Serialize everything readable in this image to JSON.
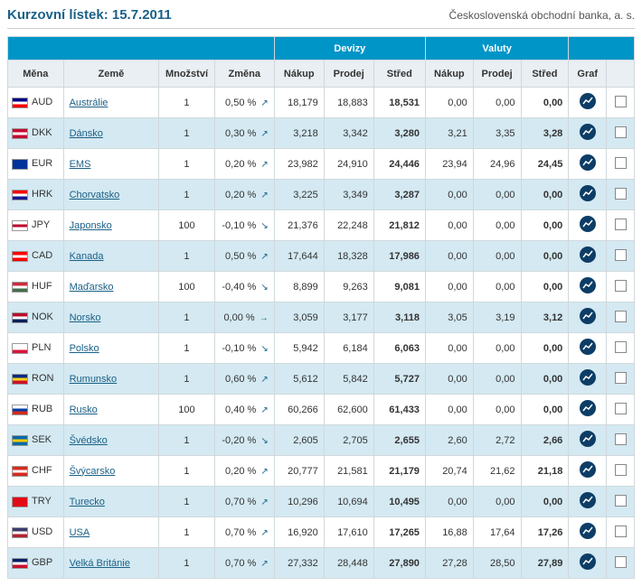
{
  "header": {
    "title": "Kurzovní lístek: 15.7.2011",
    "subtitle": "Československá obchodní banka, a. s."
  },
  "columns": {
    "mena": "Měna",
    "zeme": "Země",
    "mnozstvi": "Množství",
    "zmena": "Změna",
    "devizy": "Devizy",
    "valuty": "Valuty",
    "nakup": "Nákup",
    "prodej": "Prodej",
    "stred": "Střed",
    "graf": "Graf"
  },
  "rows": [
    {
      "code": "AUD",
      "country": "Austrálie",
      "flag": [
        "#00008b",
        "#ffffff",
        "#ff0000"
      ],
      "qty": "1",
      "change": "0,50 %",
      "dir": "up",
      "dn": "18,179",
      "dp": "18,883",
      "ds": "18,531",
      "vn": "0,00",
      "vp": "0,00",
      "vs": "0,00"
    },
    {
      "code": "DKK",
      "country": "Dánsko",
      "flag": [
        "#c60c30",
        "#ffffff",
        "#c60c30"
      ],
      "qty": "1",
      "change": "0,30 %",
      "dir": "up",
      "dn": "3,218",
      "dp": "3,342",
      "ds": "3,280",
      "vn": "3,21",
      "vp": "3,35",
      "vs": "3,28"
    },
    {
      "code": "EUR",
      "country": "EMS",
      "flag": [
        "#003399",
        "#003399",
        "#003399"
      ],
      "qty": "1",
      "change": "0,20 %",
      "dir": "up",
      "dn": "23,982",
      "dp": "24,910",
      "ds": "24,446",
      "vn": "23,94",
      "vp": "24,96",
      "vs": "24,45"
    },
    {
      "code": "HRK",
      "country": "Chorvatsko",
      "flag": [
        "#ff0000",
        "#ffffff",
        "#171796"
      ],
      "qty": "1",
      "change": "0,20 %",
      "dir": "up",
      "dn": "3,225",
      "dp": "3,349",
      "ds": "3,287",
      "vn": "0,00",
      "vp": "0,00",
      "vs": "0,00"
    },
    {
      "code": "JPY",
      "country": "Japonsko",
      "flag": [
        "#ffffff",
        "#bc002d",
        "#ffffff"
      ],
      "qty": "100",
      "change": "-0,10 %",
      "dir": "down",
      "dn": "21,376",
      "dp": "22,248",
      "ds": "21,812",
      "vn": "0,00",
      "vp": "0,00",
      "vs": "0,00"
    },
    {
      "code": "CAD",
      "country": "Kanada",
      "flag": [
        "#ff0000",
        "#ffffff",
        "#ff0000"
      ],
      "qty": "1",
      "change": "0,50 %",
      "dir": "up",
      "dn": "17,644",
      "dp": "18,328",
      "ds": "17,986",
      "vn": "0,00",
      "vp": "0,00",
      "vs": "0,00"
    },
    {
      "code": "HUF",
      "country": "Maďarsko",
      "flag": [
        "#cd2a3e",
        "#ffffff",
        "#436f4d"
      ],
      "qty": "100",
      "change": "-0,40 %",
      "dir": "down",
      "dn": "8,899",
      "dp": "9,263",
      "ds": "9,081",
      "vn": "0,00",
      "vp": "0,00",
      "vs": "0,00"
    },
    {
      "code": "NOK",
      "country": "Norsko",
      "flag": [
        "#ba0c2f",
        "#ffffff",
        "#00205b"
      ],
      "qty": "1",
      "change": "0,00 %",
      "dir": "flat",
      "dn": "3,059",
      "dp": "3,177",
      "ds": "3,118",
      "vn": "3,05",
      "vp": "3,19",
      "vs": "3,12"
    },
    {
      "code": "PLN",
      "country": "Polsko",
      "flag": [
        "#ffffff",
        "#ffffff",
        "#dc143c"
      ],
      "qty": "1",
      "change": "-0,10 %",
      "dir": "down",
      "dn": "5,942",
      "dp": "6,184",
      "ds": "6,063",
      "vn": "0,00",
      "vp": "0,00",
      "vs": "0,00"
    },
    {
      "code": "RON",
      "country": "Rumunsko",
      "flag": [
        "#002b7f",
        "#fcd116",
        "#ce1126"
      ],
      "qty": "1",
      "change": "0,60 %",
      "dir": "up",
      "dn": "5,612",
      "dp": "5,842",
      "ds": "5,727",
      "vn": "0,00",
      "vp": "0,00",
      "vs": "0,00"
    },
    {
      "code": "RUB",
      "country": "Rusko",
      "flag": [
        "#ffffff",
        "#0039a6",
        "#d52b1e"
      ],
      "qty": "100",
      "change": "0,40 %",
      "dir": "up",
      "dn": "60,266",
      "dp": "62,600",
      "ds": "61,433",
      "vn": "0,00",
      "vp": "0,00",
      "vs": "0,00"
    },
    {
      "code": "SEK",
      "country": "Švédsko",
      "flag": [
        "#006aa7",
        "#fecc00",
        "#006aa7"
      ],
      "qty": "1",
      "change": "-0,20 %",
      "dir": "down",
      "dn": "2,605",
      "dp": "2,705",
      "ds": "2,655",
      "vn": "2,60",
      "vp": "2,72",
      "vs": "2,66"
    },
    {
      "code": "CHF",
      "country": "Švýcarsko",
      "flag": [
        "#d52b1e",
        "#ffffff",
        "#d52b1e"
      ],
      "qty": "1",
      "change": "0,20 %",
      "dir": "up",
      "dn": "20,777",
      "dp": "21,581",
      "ds": "21,179",
      "vn": "20,74",
      "vp": "21,62",
      "vs": "21,18"
    },
    {
      "code": "TRY",
      "country": "Turecko",
      "flag": [
        "#e30a17",
        "#e30a17",
        "#e30a17"
      ],
      "qty": "1",
      "change": "0,70 %",
      "dir": "up",
      "dn": "10,296",
      "dp": "10,694",
      "ds": "10,495",
      "vn": "0,00",
      "vp": "0,00",
      "vs": "0,00"
    },
    {
      "code": "USD",
      "country": "USA",
      "flag": [
        "#3c3b6e",
        "#ffffff",
        "#b22234"
      ],
      "qty": "1",
      "change": "0,70 %",
      "dir": "up",
      "dn": "16,920",
      "dp": "17,610",
      "ds": "17,265",
      "vn": "16,88",
      "vp": "17,64",
      "vs": "17,26"
    },
    {
      "code": "GBP",
      "country": "Velká Británie",
      "flag": [
        "#012169",
        "#ffffff",
        "#c8102e"
      ],
      "qty": "1",
      "change": "0,70 %",
      "dir": "up",
      "dn": "27,332",
      "dp": "28,448",
      "ds": "27,890",
      "vn": "27,28",
      "vp": "28,50",
      "vs": "27,89"
    }
  ]
}
